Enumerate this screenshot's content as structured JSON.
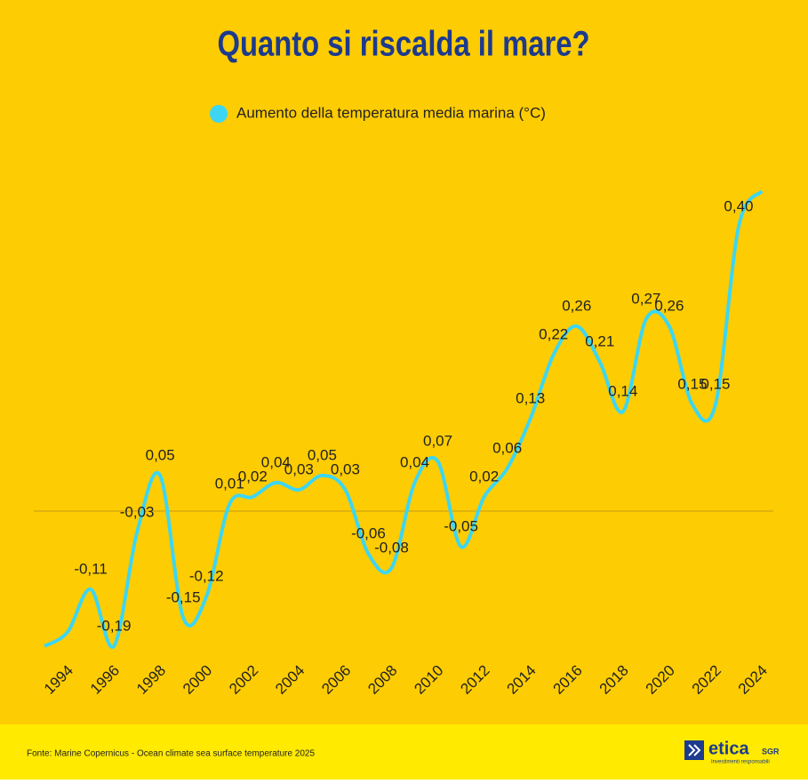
{
  "chart_data": {
    "type": "line",
    "title": "Quanto si riscalda il mare?",
    "categories": [
      null,
      "1994",
      null,
      "1996",
      null,
      "1998",
      null,
      "2000",
      null,
      "2002",
      null,
      "2004",
      null,
      "2006",
      null,
      "2008",
      null,
      "2010",
      null,
      "2012",
      null,
      "2014",
      null,
      "2016",
      null,
      "2018",
      null,
      "2020",
      null,
      "2022",
      null,
      "2024"
    ],
    "series": [
      {
        "name": "Aumento della temperatura media marina (°C)",
        "color": "#3dd6f2",
        "values": [
          -0.19,
          -0.17,
          -0.11,
          -0.19,
          -0.03,
          0.05,
          -0.15,
          -0.12,
          0.01,
          0.02,
          0.04,
          0.03,
          0.05,
          0.03,
          -0.06,
          -0.08,
          0.04,
          0.07,
          -0.05,
          0.02,
          0.06,
          0.13,
          0.22,
          0.26,
          0.21,
          0.14,
          0.27,
          0.26,
          0.15,
          0.15,
          0.4,
          0.45
        ],
        "value_labels": [
          null,
          null,
          "-0,11",
          "-0,19",
          "-0,03",
          "0,05",
          "-0,15",
          "-0,12",
          "0,01",
          "0,02",
          "0,04",
          "0,03",
          "0,05",
          "0,03",
          "-0,06",
          "-0,08",
          "0,04",
          "0,07",
          "-0,05",
          "0,02",
          "0,06",
          "0,13",
          "0,22",
          "0,26",
          "0,21",
          "0,14",
          "0,27",
          "0,26",
          "0,15",
          "0,15",
          "0,40",
          null
        ]
      }
    ],
    "ylim": [
      -0.2,
      0.45
    ],
    "zero_line": true,
    "source": "Fonte: Marine Copernicus - Ocean climate sea surface temperature 2025"
  },
  "logo": {
    "name": "etica",
    "suffix": "SGR",
    "tagline": "Investimenti responsabili"
  }
}
